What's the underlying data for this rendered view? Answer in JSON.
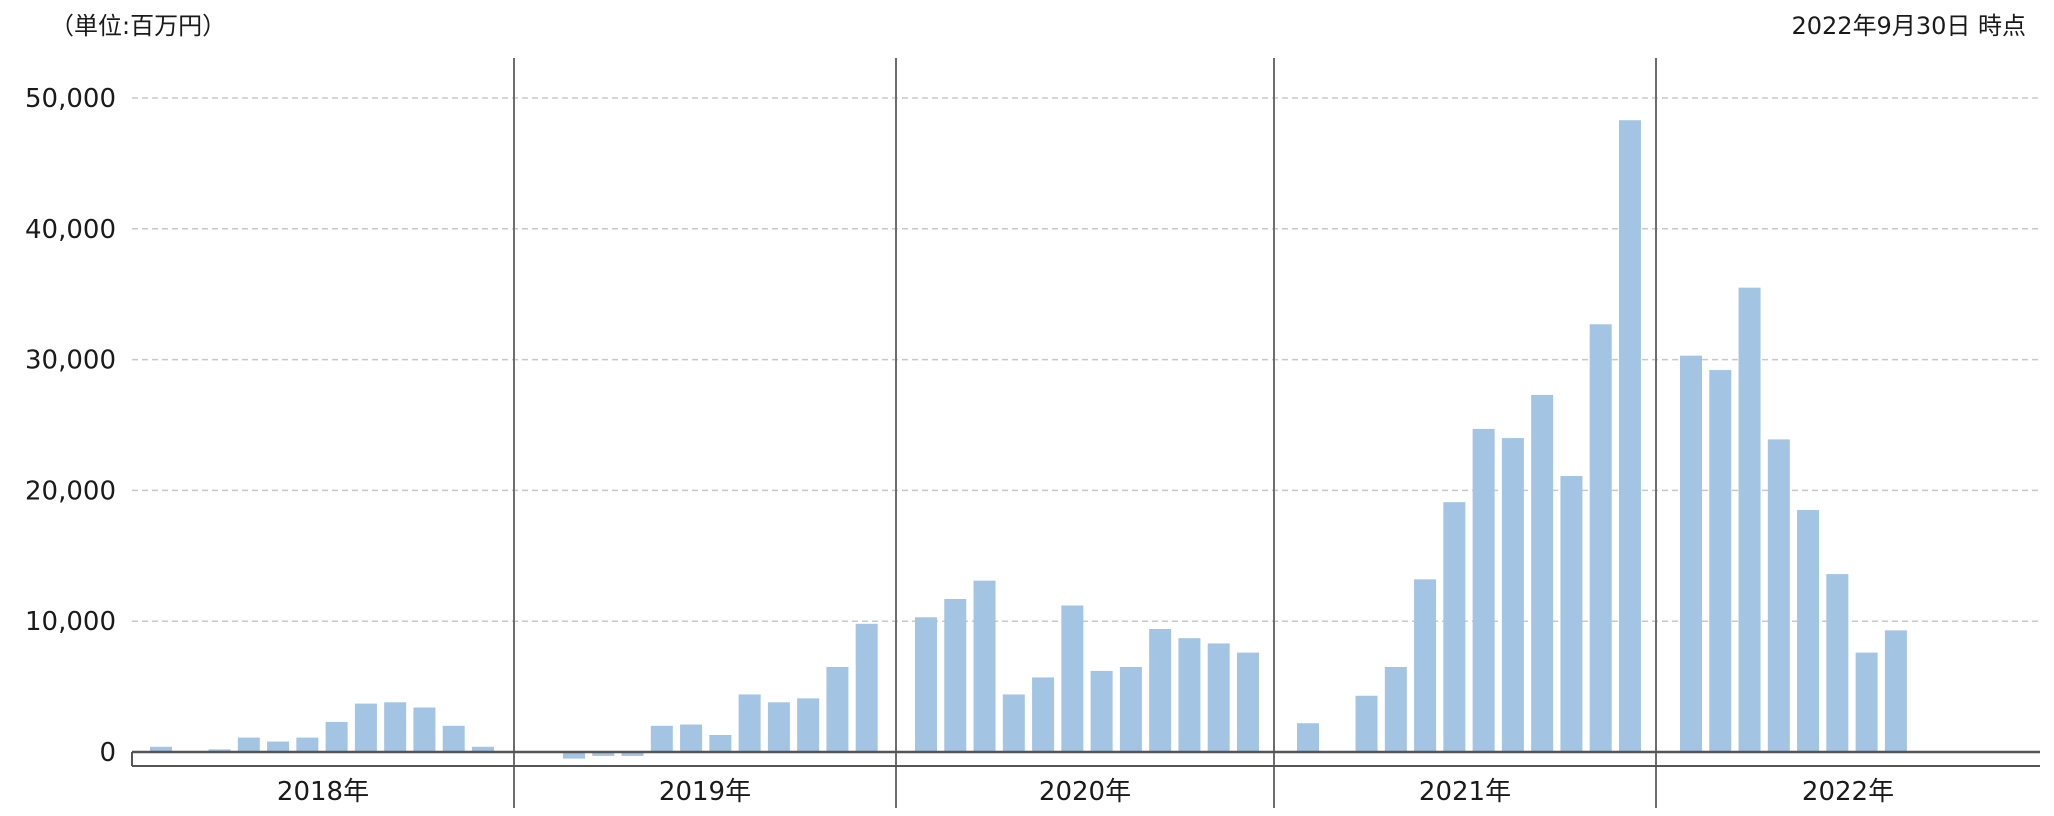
{
  "header": {
    "unit": "（単位:百万円）",
    "as_of": "2022年9月30日 時点"
  },
  "chart_data": {
    "type": "bar",
    "unit": "（単位:百万円）",
    "ylim": [
      -1000,
      52000
    ],
    "y_ticks": [
      0,
      10000,
      20000,
      30000,
      40000,
      50000
    ],
    "y_tick_labels": [
      "0",
      "10,000",
      "20,000",
      "30,000",
      "40,000",
      "50,000"
    ],
    "grid": true,
    "bar_color": "#a3c4e3",
    "year_labels": [
      "2018年",
      "2019年",
      "2020年",
      "2021年",
      "2022年"
    ],
    "years": [
      {
        "label": "2018年",
        "values": [
          400,
          0,
          200,
          1100,
          800,
          1100,
          2300,
          3700,
          3800,
          3400,
          2000,
          400
        ]
      },
      {
        "label": "2019年",
        "values": [
          -500,
          -300,
          -300,
          2000,
          2100,
          1300,
          4400,
          3800,
          4100,
          6500,
          9800,
          null
        ]
      },
      {
        "label": "2020年",
        "values": [
          10300,
          11700,
          13100,
          4400,
          5700,
          11200,
          6200,
          6500,
          9400,
          8700,
          8300,
          7600
        ]
      },
      {
        "label": "2021年",
        "values": [
          2200,
          0,
          4300,
          6500,
          13200,
          19100,
          24700,
          24000,
          27300,
          21100,
          32700,
          48300
        ]
      },
      {
        "label": "2022年",
        "values": [
          30300,
          29200,
          35500,
          23900,
          18500,
          13600,
          7600,
          9300,
          null
        ]
      }
    ]
  }
}
